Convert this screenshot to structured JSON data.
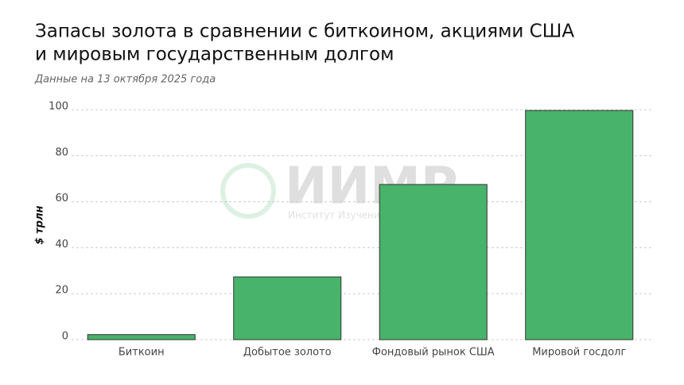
{
  "chart_data": {
    "type": "bar",
    "title": [
      "Запасы золота в сравнении с биткоином, акциями США",
      "и мировым государственным долгом"
    ],
    "subtitle": "Данные на 13 октября 2025 года",
    "y_label": "$ трлн",
    "watermark": {
      "logo": "ИИМР",
      "text": "Институт Изучения Мировых Рынков"
    },
    "categories": [
      "Биткоин",
      "Добытое золото",
      "Фондовый рынок США",
      "Мировой госдолг"
    ],
    "values": [
      2.2,
      27.3,
      67.5,
      99.7
    ],
    "color": "#48b36a",
    "ylim": [
      0,
      100
    ],
    "yticks": [
      0,
      20,
      40,
      60,
      80,
      100
    ],
    "grid": true
  }
}
